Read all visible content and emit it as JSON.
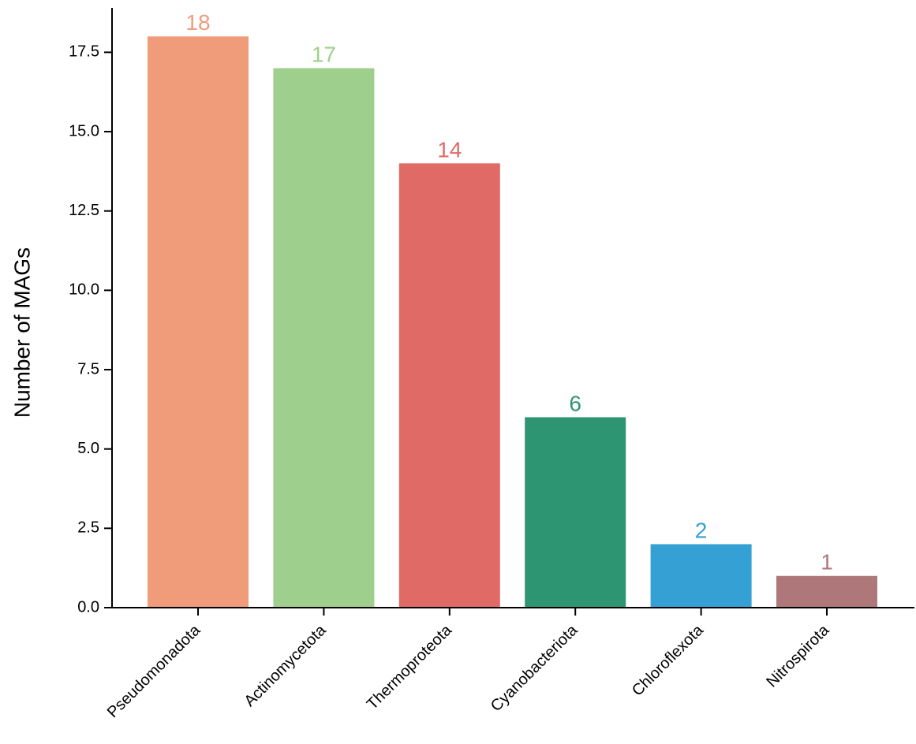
{
  "chart_data": {
    "type": "bar",
    "categories": [
      "Pseudomonadota",
      "Actinomycetota",
      "Thermoproteota",
      "Cyanobacteriota",
      "Chloroflexota",
      "Nitrospirota"
    ],
    "values": [
      18,
      17,
      14,
      6,
      2,
      1
    ],
    "colors": [
      "#f09c7a",
      "#9fcf8c",
      "#e06a65",
      "#2e9572",
      "#34a0d3",
      "#ae787a"
    ],
    "y_label": "Number of MAGs",
    "ylim": [
      0,
      18.9
    ],
    "yticks": [
      {
        "value": 0,
        "label": "0.0"
      },
      2.5,
      {
        "value": 5,
        "label": "5.0"
      },
      7.5,
      {
        "value": 10,
        "label": "10.0"
      },
      12.5,
      {
        "value": 15,
        "label": "15.0"
      },
      17.5
    ]
  }
}
